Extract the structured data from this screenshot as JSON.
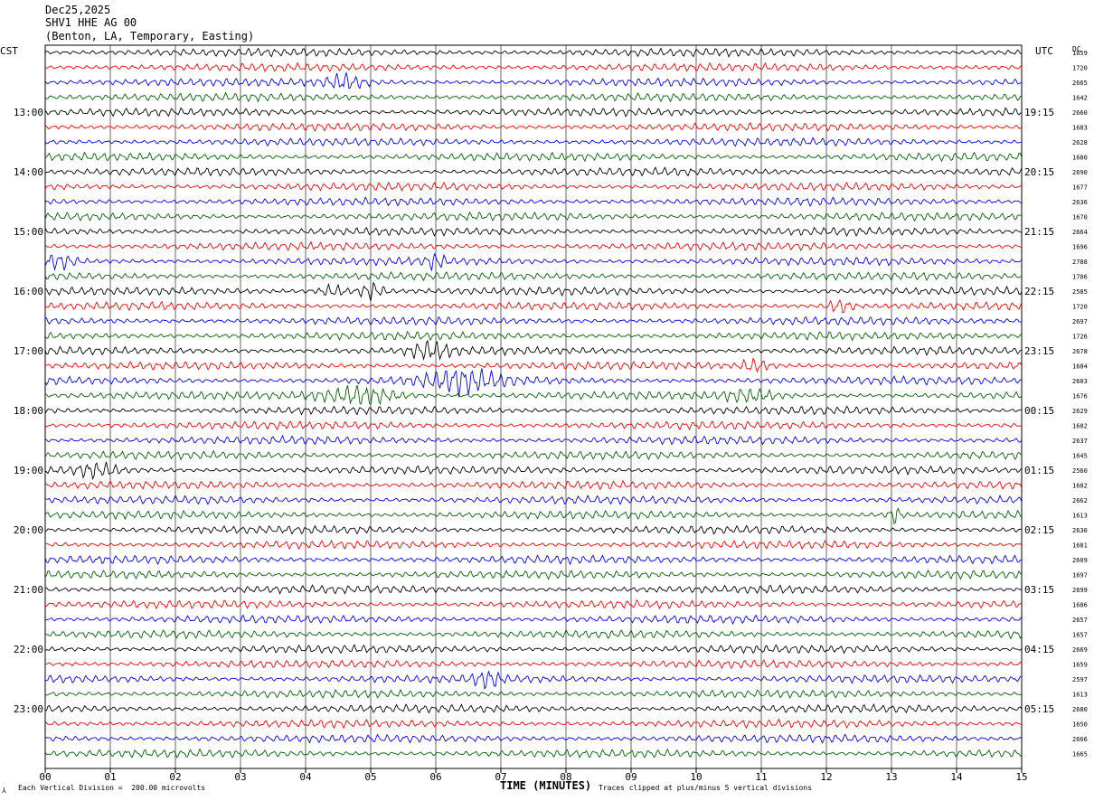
{
  "header": {
    "date": "Dec25,2025",
    "station": "SHV1 HHE AG 00",
    "location": "(Benton, LA, Temporary, Easting)"
  },
  "left_tz": "CST",
  "right_tz": "UTC",
  "dc_label": "DC",
  "footer": {
    "scale_note": "Each Vertical Division =  200.00 microvolts",
    "clip_note": "Traces clipped at plus/minus 5 vertical divisions"
  },
  "colors": {
    "trace_cycle": [
      "#000000",
      "#ff0000",
      "#0000ff",
      "#006400"
    ],
    "grid": "#000000"
  },
  "chart_data": {
    "type": "line",
    "xlabel": "TIME (MINUTES)",
    "x_ticks": [
      "00",
      "01",
      "02",
      "03",
      "04",
      "05",
      "06",
      "07",
      "08",
      "09",
      "10",
      "11",
      "12",
      "13",
      "14",
      "15"
    ],
    "xlim": [
      0,
      15
    ],
    "row_count": 48,
    "left_time_labels": [
      "13:00",
      "14:00",
      "15:00",
      "16:00",
      "17:00",
      "18:00",
      "19:00",
      "20:00",
      "21:00",
      "22:00",
      "23:00"
    ],
    "right_time_labels": [
      "19:15",
      "20:15",
      "21:15",
      "22:15",
      "23:15",
      "00:15",
      "01:15",
      "02:15",
      "03:15",
      "04:15",
      "05:15"
    ],
    "dc_values": [
      "1659",
      "1720",
      "2665",
      "1642",
      "2660",
      "1683",
      "2628",
      "1680",
      "2690",
      "1677",
      "2636",
      "1670",
      "2664",
      "1696",
      "2788",
      "1706",
      "2585",
      "1720",
      "2697",
      "1726",
      "2678",
      "1684",
      "2603",
      "1676",
      "2629",
      "1682",
      "2637",
      "1645",
      "2560",
      "1682",
      "2662",
      "1613",
      "2630",
      "1681",
      "2609",
      "1697",
      "2699",
      "1686",
      "2657",
      "1657",
      "2669",
      "1659",
      "2597",
      "1613",
      "2680",
      "1650",
      "2666",
      "1665"
    ],
    "events": [
      {
        "row": 2,
        "minute": 4.6,
        "amp": 2.0,
        "width": 0.3
      },
      {
        "row": 14,
        "minute": 0.2,
        "amp": 1.8,
        "width": 0.25
      },
      {
        "row": 14,
        "minute": 6.0,
        "amp": 1.8,
        "width": 0.15
      },
      {
        "row": 16,
        "minute": 4.4,
        "amp": 1.6,
        "width": 0.2
      },
      {
        "row": 16,
        "minute": 5.0,
        "amp": 2.2,
        "width": 0.2
      },
      {
        "row": 17,
        "minute": 12.2,
        "amp": 1.7,
        "width": 0.2
      },
      {
        "row": 20,
        "minute": 5.9,
        "amp": 2.2,
        "width": 0.3
      },
      {
        "row": 21,
        "minute": 10.9,
        "amp": 1.6,
        "width": 0.2
      },
      {
        "row": 22,
        "minute": 6.4,
        "amp": 3.0,
        "width": 0.6
      },
      {
        "row": 23,
        "minute": 4.8,
        "amp": 2.4,
        "width": 0.6
      },
      {
        "row": 23,
        "minute": 10.8,
        "amp": 1.5,
        "width": 0.4
      },
      {
        "row": 28,
        "minute": 0.8,
        "amp": 1.8,
        "width": 0.3
      },
      {
        "row": 31,
        "minute": 13.05,
        "amp": 2.2,
        "width": 0.1
      },
      {
        "row": 42,
        "minute": 6.8,
        "amp": 2.0,
        "width": 0.2
      }
    ]
  }
}
